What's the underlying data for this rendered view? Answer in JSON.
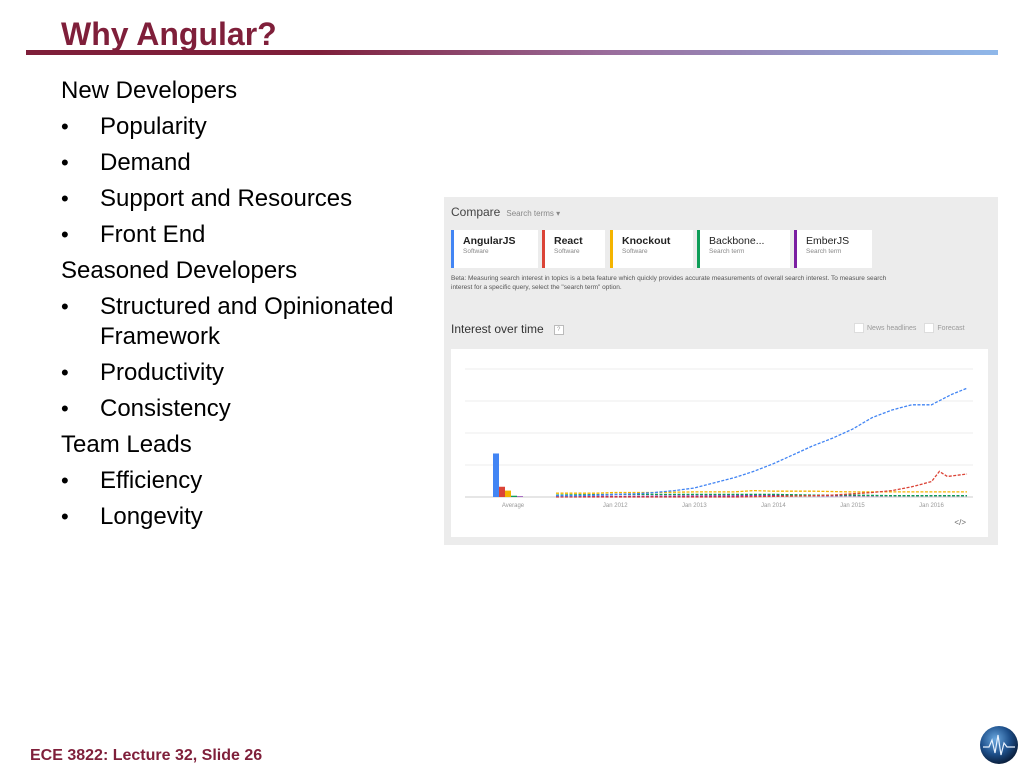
{
  "slide": {
    "title": "Why Angular?",
    "footer": "ECE 3822: Lecture 32, Slide 26"
  },
  "bullets": {
    "groups": [
      {
        "heading": "New Developers",
        "items": [
          "Popularity",
          "Demand",
          "Support and Resources",
          "Front End"
        ]
      },
      {
        "heading": "Seasoned Developers",
        "items": [
          "Structured and Opinionated Framework",
          "Productivity",
          "Consistency"
        ]
      },
      {
        "heading": "Team Leads",
        "items": [
          "Efficiency",
          "Longevity"
        ]
      }
    ]
  },
  "trends": {
    "compare_label": "Compare",
    "search_terms_label": "Search terms ▾",
    "cards": [
      {
        "name": "AngularJS",
        "type": "Software",
        "color": "#4285f4"
      },
      {
        "name": "React",
        "type": "Software",
        "color": "#db4437"
      },
      {
        "name": "Knockout",
        "type": "Software",
        "color": "#f4b400"
      },
      {
        "name": "Backbone...",
        "type": "Search term",
        "color": "#0f9d58"
      },
      {
        "name": "EmberJS",
        "type": "Search term",
        "color": "#7b1fa2"
      }
    ],
    "beta_note": "Beta: Measuring search interest in topics is a beta feature which quickly provides accurate measurements of overall search interest. To measure search interest for a specific query, select the \"search term\" option.",
    "interest_title": "Interest over time",
    "help_glyph": "?",
    "news_headlines_label": "News headlines",
    "forecast_label": "Forecast",
    "embed_glyph": "</>"
  },
  "chart_data": {
    "type": "line",
    "title": "Interest over time",
    "x_ticks": [
      "Average",
      "Jan 2012",
      "Jan 2013",
      "Jan 2014",
      "Jan 2015",
      "Jan 2016"
    ],
    "x_range": [
      2011.25,
      2016.5
    ],
    "ylim": [
      0,
      100
    ],
    "averages": [
      {
        "name": "AngularJS",
        "value": 34
      },
      {
        "name": "React",
        "value": 8
      },
      {
        "name": "Knockout",
        "value": 5
      },
      {
        "name": "Backbone...",
        "value": 1
      },
      {
        "name": "EmberJS",
        "value": 0.5
      }
    ],
    "series": [
      {
        "name": "AngularJS",
        "color": "#4285f4",
        "x": [
          2011.25,
          2011.5,
          2011.75,
          2012.0,
          2012.25,
          2012.5,
          2012.75,
          2013.0,
          2013.25,
          2013.5,
          2013.75,
          2014.0,
          2014.25,
          2014.5,
          2014.75,
          2015.0,
          2015.25,
          2015.5,
          2015.75,
          2016.0,
          2016.25,
          2016.45
        ],
        "y": [
          1,
          1,
          1.5,
          2,
          2.5,
          3.5,
          5,
          7,
          11,
          15,
          20,
          26,
          33,
          40,
          46,
          53,
          62,
          68,
          72,
          72,
          80,
          85
        ]
      },
      {
        "name": "React",
        "color": "#db4437",
        "x": [
          2011.25,
          2012.0,
          2013.0,
          2013.5,
          2014.0,
          2014.5,
          2014.75,
          2015.0,
          2015.25,
          2015.5,
          2015.75,
          2016.0,
          2016.1,
          2016.2,
          2016.45
        ],
        "y": [
          0,
          0,
          0,
          0,
          0.5,
          1,
          1.5,
          2.5,
          3.5,
          5,
          8,
          12,
          20,
          16,
          18
        ]
      },
      {
        "name": "Knockout",
        "color": "#f4b400",
        "x": [
          2011.25,
          2011.75,
          2012.0,
          2012.5,
          2013.0,
          2013.5,
          2013.75,
          2014.0,
          2014.5,
          2015.0,
          2015.5,
          2016.0,
          2016.45
        ],
        "y": [
          3,
          3,
          3.5,
          3.5,
          4,
          4,
          5,
          4.5,
          4.5,
          4,
          4,
          4,
          4
        ]
      },
      {
        "name": "Backbone...",
        "color": "#0f9d58",
        "x": [
          2011.25,
          2012.0,
          2013.0,
          2014.0,
          2014.5,
          2015.0,
          2015.5,
          2016.0,
          2016.45
        ],
        "y": [
          1.5,
          2,
          2,
          2,
          1.5,
          1.5,
          1,
          1,
          1
        ]
      },
      {
        "name": "EmberJS",
        "color": "#7b1fa2",
        "x": [
          2011.25,
          2012.0,
          2013.0,
          2014.0,
          2015.0,
          2016.0,
          2016.45
        ],
        "y": [
          0.5,
          0.5,
          0.8,
          1,
          1,
          1,
          1
        ]
      }
    ]
  }
}
